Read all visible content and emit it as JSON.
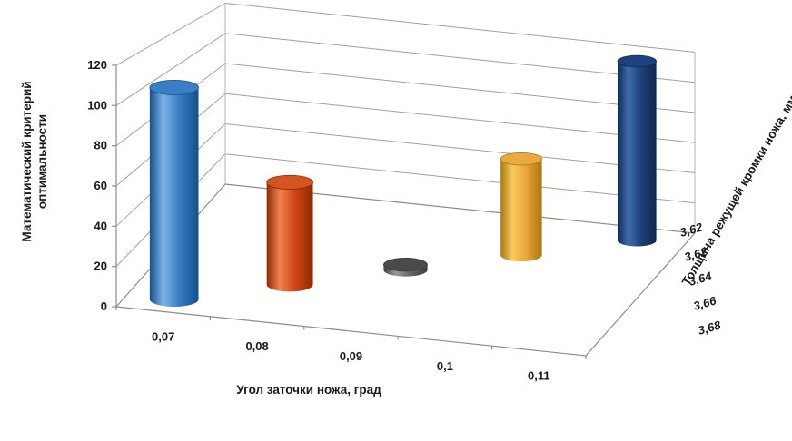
{
  "figure": {
    "background": "#ffffff"
  },
  "chart_data": {
    "type": "bar",
    "subtype": "3d-cylinder",
    "title": "",
    "legend": "none",
    "grid": true,
    "x_axis": {
      "title": "Угол заточки ножа, град",
      "categories": [
        "0,07",
        "0,08",
        "0,09",
        "0,1",
        "0,11"
      ]
    },
    "y_axis": {
      "title_lines": [
        "Математический критерий",
        "оптимальности"
      ],
      "min": 0,
      "max": 120,
      "step": 20,
      "tick_labels": [
        "0",
        "20",
        "40",
        "60",
        "80",
        "100",
        "120"
      ]
    },
    "depth_axis": {
      "title": "Толщина режущей кромки ножа, мм",
      "labels_back_to_front": [
        "3,62",
        "3,62",
        "3,64",
        "3,66",
        "3,68"
      ]
    },
    "bars": [
      {
        "category": "0,07",
        "thickness": "3,68",
        "value": 108,
        "color": {
          "dark": "#164f8c",
          "light": "#7db4e8",
          "mid": "#3579bf",
          "top": "#3b7ec4"
        }
      },
      {
        "category": "0,08",
        "thickness": "3,66",
        "value": 55,
        "color": {
          "dark": "#8f2a00",
          "light": "#f08150",
          "mid": "#cf4514",
          "top": "#d25522"
        }
      },
      {
        "category": "0,09",
        "thickness": "3,64",
        "value": 3,
        "color": {
          "dark": "#3d3d3d",
          "light": "#9a9a9a",
          "mid": "#636363",
          "top": "#4a4a4a"
        }
      },
      {
        "category": "0,1",
        "thickness": "3,62",
        "value": 58,
        "color": {
          "dark": "#a8770e",
          "light": "#f8c95e",
          "mid": "#e9a63b",
          "top": "#eaaa3f"
        }
      },
      {
        "category": "0,11",
        "thickness": "3,62",
        "value": 115,
        "color": {
          "dark": "#0f2a52",
          "light": "#3f6cae",
          "mid": "#1d3f78",
          "top": "#1e4180"
        }
      }
    ],
    "axis_color": "#8c8c8c",
    "grid_color": "#a0a0a0",
    "text_color": "#1a1a1a"
  }
}
